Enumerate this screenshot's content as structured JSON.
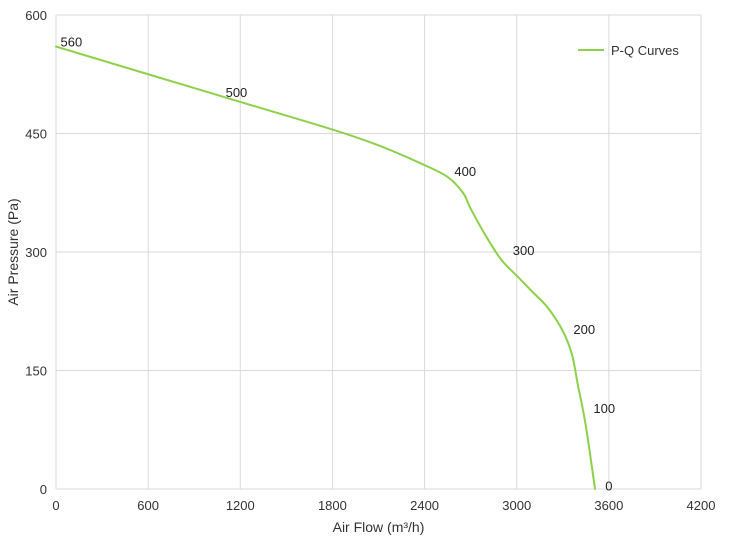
{
  "chart_data": {
    "type": "line",
    "title": "",
    "xlabel": "Air Flow  (m³/h)",
    "ylabel": "Air Pressure  (Pa)",
    "xlim": [
      0,
      4200
    ],
    "ylim": [
      0,
      600
    ],
    "xticks": [
      0,
      600,
      1200,
      1800,
      2400,
      3000,
      3600,
      4200
    ],
    "yticks": [
      0,
      150,
      300,
      450,
      600
    ],
    "grid": true,
    "legend_position": "top-right",
    "series": [
      {
        "name": "P-Q Curves",
        "color": "#8cd149",
        "x": [
          0,
          600,
          1200,
          1800,
          2100,
          2400,
          2550,
          2650,
          2700,
          2800,
          2900,
          3000,
          3100,
          3200,
          3300,
          3360,
          3400,
          3450,
          3510
        ],
        "y": [
          560,
          525,
          490,
          455,
          435,
          410,
          395,
          375,
          355,
          320,
          290,
          270,
          250,
          230,
          200,
          170,
          130,
          80,
          0
        ]
      }
    ],
    "annotations": [
      {
        "text": "560",
        "x": 100,
        "y": 560
      },
      {
        "text": "500",
        "x": 1175,
        "y": 496
      },
      {
        "text": "400",
        "x": 2665,
        "y": 396
      },
      {
        "text": "300",
        "x": 3045,
        "y": 296
      },
      {
        "text": "200",
        "x": 3440,
        "y": 196
      },
      {
        "text": "100",
        "x": 3570,
        "y": 96
      },
      {
        "text": "0",
        "x": 3600,
        "y": -2
      }
    ]
  }
}
